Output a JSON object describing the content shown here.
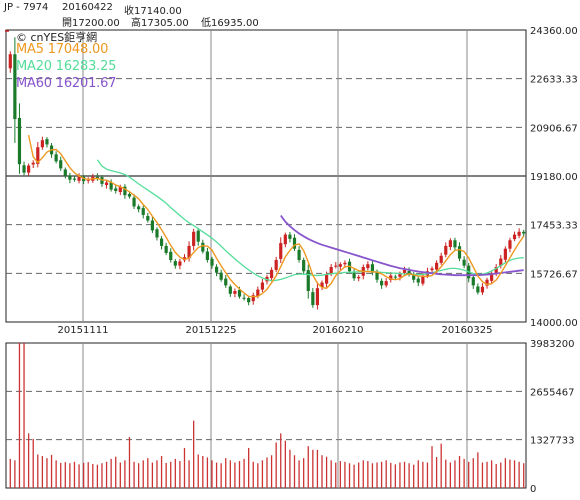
{
  "header": {
    "symbol": "JP - 7974",
    "date": "20160422",
    "close": "收17140.00",
    "open": "開17200.00",
    "high": "高17305.00",
    "low": "低16935.00",
    "brand": "cnYES鉅亨網"
  },
  "colors": {
    "up": "#cc2222",
    "down": "#1a7a2a",
    "ma5": "#ee9922",
    "ma20": "#55dd99",
    "ma60": "#8855cc",
    "volume": "#cc3333"
  },
  "chart_data": [
    {
      "type": "candlestick",
      "title": "",
      "series_labels": [
        {
          "name": "MA5",
          "text": "MA5 17048.00"
        },
        {
          "name": "MA20",
          "text": "MA20 16283.25"
        },
        {
          "name": "MA60",
          "text": "MA60 16201.67"
        }
      ],
      "ylim": [
        14000.0,
        24360.0
      ],
      "yticks": [
        "24360.00",
        "22633.33",
        "20906.67",
        "19180.00",
        "17453.33",
        "15726.67",
        "14000.00"
      ],
      "xticks": [
        "20151111",
        "20151225",
        "20160210",
        "20160325"
      ],
      "grid": "dashed horizontal and vertical",
      "close_series": [
        23500,
        21200,
        19600,
        19300,
        19550,
        19650,
        20200,
        20450,
        20300,
        19950,
        19700,
        19450,
        19200,
        19050,
        19050,
        19150,
        19000,
        19050,
        19150,
        19100,
        18900,
        18950,
        18700,
        18650,
        18800,
        18500,
        18450,
        18100,
        18000,
        17800,
        17600,
        17250,
        17000,
        16700,
        16450,
        16200,
        16000,
        16150,
        16300,
        16700,
        17200,
        16850,
        16500,
        16200,
        16000,
        15750,
        15500,
        15300,
        15000,
        15100,
        14900,
        14850,
        14700,
        14950,
        15150,
        15400,
        15600,
        15850,
        16200,
        16800,
        17100,
        16950,
        16600,
        16200,
        15800,
        15100,
        14600,
        15200,
        15400,
        15700,
        15950,
        16000,
        16050,
        16100,
        15800,
        15550,
        15600,
        15950,
        16050,
        15750,
        15500,
        15300,
        15450,
        15650,
        15600,
        15700,
        15850,
        15700,
        15500,
        15400,
        15650,
        15800,
        15900,
        16100,
        16350,
        16700,
        16900,
        16650,
        16250,
        16000,
        15550,
        15300,
        15050,
        15250,
        15500,
        15700,
        15950,
        16250,
        16600,
        16900,
        17100,
        17200,
        17140
      ],
      "ma5_series": [
        null,
        null,
        null,
        null,
        20630,
        19860,
        19660,
        19830,
        20030,
        20110,
        20120,
        19970,
        19720,
        19470,
        19290,
        19180,
        19090,
        19060,
        19080,
        19090,
        19040,
        19030,
        18960,
        18860,
        18800,
        18720,
        18620,
        18500,
        18370,
        18170,
        17990,
        17750,
        17530,
        17270,
        17000,
        16720,
        16470,
        16300,
        16220,
        16270,
        16470,
        16640,
        16710,
        16690,
        16550,
        16260,
        15990,
        15750,
        15510,
        15330,
        15170,
        15030,
        14910,
        14900,
        14910,
        15010,
        15160,
        15390,
        15640,
        15970,
        16310,
        16540,
        16730,
        16770,
        16530,
        16130,
        15660,
        15380,
        15220,
        15200,
        15370,
        15650,
        15820,
        15960,
        15980,
        15900,
        15820,
        15800,
        15790,
        15780,
        15770,
        15710,
        15610,
        15530,
        15500,
        15540,
        15650,
        15710,
        15670,
        15630,
        15620,
        15610,
        15650,
        15790,
        15960,
        16170,
        16390,
        16540,
        16570,
        16500,
        16270,
        15950,
        15630,
        15430,
        15330,
        15360,
        15490,
        15730,
        16000,
        16280,
        16550,
        16810,
        17048
      ],
      "ma20_series": [
        null,
        null,
        null,
        null,
        null,
        null,
        null,
        null,
        null,
        null,
        null,
        null,
        null,
        null,
        null,
        null,
        null,
        null,
        null,
        19760,
        19530,
        19420,
        19370,
        19330,
        19290,
        19230,
        19140,
        19020,
        18900,
        18790,
        18680,
        18570,
        18460,
        18340,
        18210,
        18060,
        17920,
        17780,
        17640,
        17520,
        17420,
        17310,
        17200,
        17090,
        16970,
        16840,
        16690,
        16530,
        16380,
        16240,
        16100,
        15970,
        15850,
        15740,
        15640,
        15560,
        15500,
        15470,
        15480,
        15510,
        15560,
        15620,
        15680,
        15700,
        15700,
        15680,
        15660,
        15650,
        15660,
        15690,
        15710,
        15730,
        15740,
        15760,
        15760,
        15770,
        15780,
        15790,
        15800,
        15790,
        15780,
        15760,
        15750,
        15740,
        15730,
        15720,
        15700,
        15700,
        15690,
        15680,
        15690,
        15710,
        15750,
        15790,
        15830,
        15870,
        15900,
        15900,
        15880,
        15840,
        15780,
        15720,
        15690,
        15700,
        15740,
        15810,
        15900,
        16000,
        16100,
        16190,
        16240,
        16270,
        16283
      ],
      "ma60_series": [
        null,
        null,
        null,
        null,
        null,
        null,
        null,
        null,
        null,
        null,
        null,
        null,
        null,
        null,
        null,
        null,
        null,
        null,
        null,
        null,
        null,
        null,
        null,
        null,
        null,
        null,
        null,
        null,
        null,
        null,
        null,
        null,
        null,
        null,
        null,
        null,
        null,
        null,
        null,
        null,
        null,
        null,
        null,
        null,
        null,
        null,
        null,
        null,
        null,
        null,
        null,
        null,
        null,
        null,
        null,
        null,
        null,
        null,
        null,
        17780,
        17560,
        17400,
        17260,
        17140,
        17040,
        16950,
        16870,
        16800,
        16740,
        16690,
        16640,
        16590,
        16540,
        16490,
        16440,
        16390,
        16340,
        16290,
        16240,
        16190,
        16140,
        16090,
        16040,
        15990,
        15950,
        15910,
        15880,
        15850,
        15820,
        15790,
        15770,
        15750,
        15730,
        15710,
        15690,
        15680,
        15670,
        15660,
        15660,
        15660,
        15660,
        15660,
        15660,
        15670,
        15680,
        15700,
        15720,
        15740,
        15760,
        15780,
        15800,
        15820,
        16201.67
      ]
    },
    {
      "type": "bar",
      "title": "",
      "ylim": [
        0,
        3983200
      ],
      "yticks": [
        "3983200",
        "2655467",
        "1327733",
        "0"
      ],
      "values": [
        800000,
        760000,
        3983200,
        3983200,
        1500000,
        1350000,
        920000,
        880000,
        820000,
        910000,
        760000,
        690000,
        710000,
        680000,
        720000,
        650000,
        690000,
        710000,
        660000,
        640000,
        680000,
        720000,
        800000,
        860000,
        700000,
        760000,
        1400000,
        720000,
        680000,
        760000,
        820000,
        700000,
        760000,
        880000,
        690000,
        720000,
        800000,
        740000,
        1100000,
        760000,
        1850000,
        920000,
        880000,
        840000,
        760000,
        700000,
        680000,
        820000,
        760000,
        700000,
        740000,
        800000,
        1100000,
        720000,
        680000,
        760000,
        840000,
        900000,
        1250000,
        1500000,
        1300000,
        1050000,
        900000,
        760000,
        820000,
        1150000,
        1050000,
        1050000,
        900000,
        860000,
        760000,
        700000,
        740000,
        720000,
        680000,
        640000,
        700000,
        760000,
        740000,
        680000,
        700000,
        720000,
        760000,
        690000,
        650000,
        700000,
        720000,
        680000,
        640000,
        760000,
        720000,
        700000,
        1150000,
        850000,
        1220000,
        780000,
        700000,
        760000,
        880000,
        800000,
        720000,
        820000,
        980000,
        700000,
        720000,
        760000,
        660000,
        700000,
        820000,
        780000,
        760000,
        720000,
        680000
      ]
    }
  ]
}
